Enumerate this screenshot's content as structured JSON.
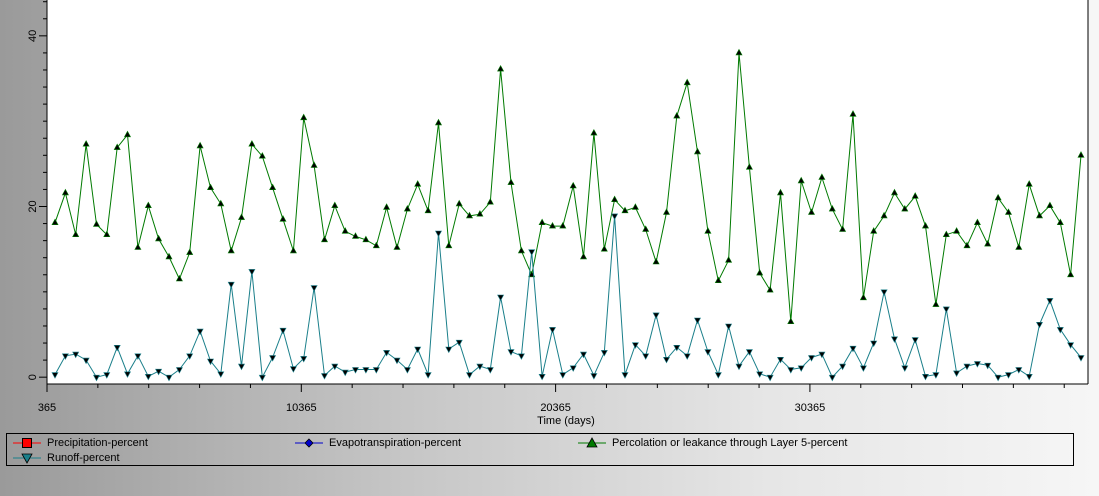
{
  "chart_data": {
    "type": "line",
    "xlabel": "Time (days)",
    "ylabel": "",
    "xlim": [
      365,
      41300
    ],
    "ylim": [
      -0.8,
      44.2
    ],
    "x_ticks": [
      365,
      10365,
      20365,
      30365
    ],
    "y_ticks": [
      0,
      20,
      40
    ],
    "grid": false,
    "legend_position": "bottom",
    "series": [
      {
        "name": "Precipitation-percent",
        "color": "#ff0000",
        "marker": "square",
        "values": []
      },
      {
        "name": "Evapotranspiration-percent",
        "color": "#0000cc",
        "marker": "diamond",
        "values": []
      },
      {
        "name": "Percolation or leakance through Layer  5-percent",
        "color": "#007a00",
        "marker": "triangle-up",
        "values": [
          18.1,
          21.6,
          16.7,
          27.3,
          17.9,
          16.7,
          26.9,
          28.4,
          15.2,
          20.1,
          16.2,
          14.1,
          11.5,
          14.6,
          27.1,
          22.2,
          20.3,
          14.8,
          18.7,
          27.3,
          25.9,
          22.2,
          18.5,
          14.8,
          30.4,
          24.8,
          16.1,
          20.1,
          17.1,
          16.5,
          16.1,
          15.4,
          19.9,
          15.2,
          19.7,
          22.6,
          19.5,
          29.8,
          15.4,
          20.3,
          18.9,
          19.1,
          20.5,
          36.1,
          22.8,
          14.8,
          12.0,
          18.1,
          17.7,
          17.7,
          22.4,
          14.1,
          28.6,
          15.0,
          20.8,
          19.5,
          19.9,
          17.3,
          13.5,
          19.3,
          30.6,
          34.5,
          26.4,
          17.1,
          11.3,
          13.7,
          38.0,
          24.6,
          12.2,
          10.2,
          21.6,
          6.5,
          23.0,
          19.3,
          23.4,
          19.7,
          17.3,
          30.8,
          9.3,
          17.1,
          18.9,
          21.6,
          19.7,
          21.2,
          17.7,
          8.5,
          16.7,
          17.1,
          15.4,
          18.1,
          15.6,
          21.0,
          19.3,
          15.2,
          22.6,
          18.9,
          20.1,
          18.1,
          12.0,
          26.0
        ]
      },
      {
        "name": "Runoff-percent",
        "color": "#1a7f8a",
        "marker": "triangle-down",
        "values": [
          0.3,
          2.5,
          2.7,
          2.0,
          0.0,
          0.3,
          3.5,
          0.4,
          2.5,
          0.1,
          0.7,
          0.0,
          0.9,
          2.5,
          5.4,
          1.9,
          0.4,
          10.9,
          1.3,
          12.4,
          0.0,
          2.3,
          5.5,
          1.0,
          2.2,
          10.5,
          0.2,
          1.3,
          0.6,
          0.9,
          0.9,
          0.9,
          2.9,
          2.0,
          0.9,
          3.3,
          0.3,
          16.9,
          3.3,
          4.1,
          0.3,
          1.3,
          0.9,
          9.4,
          3.0,
          2.5,
          14.7,
          0.1,
          5.6,
          0.3,
          1.1,
          2.7,
          0.2,
          2.9,
          18.9,
          0.3,
          3.8,
          2.5,
          7.3,
          2.1,
          3.5,
          2.5,
          6.7,
          3.0,
          0.3,
          6.0,
          1.3,
          3.0,
          0.4,
          0.0,
          2.1,
          0.9,
          1.1,
          2.3,
          2.7,
          0.0,
          1.3,
          3.4,
          1.1,
          4.0,
          10.0,
          4.5,
          1.1,
          4.4,
          0.1,
          0.3,
          8.0,
          0.5,
          1.3,
          1.6,
          1.4,
          0.0,
          0.3,
          0.9,
          0.1,
          6.2,
          9.0,
          5.6,
          3.8,
          2.3
        ]
      }
    ]
  }
}
